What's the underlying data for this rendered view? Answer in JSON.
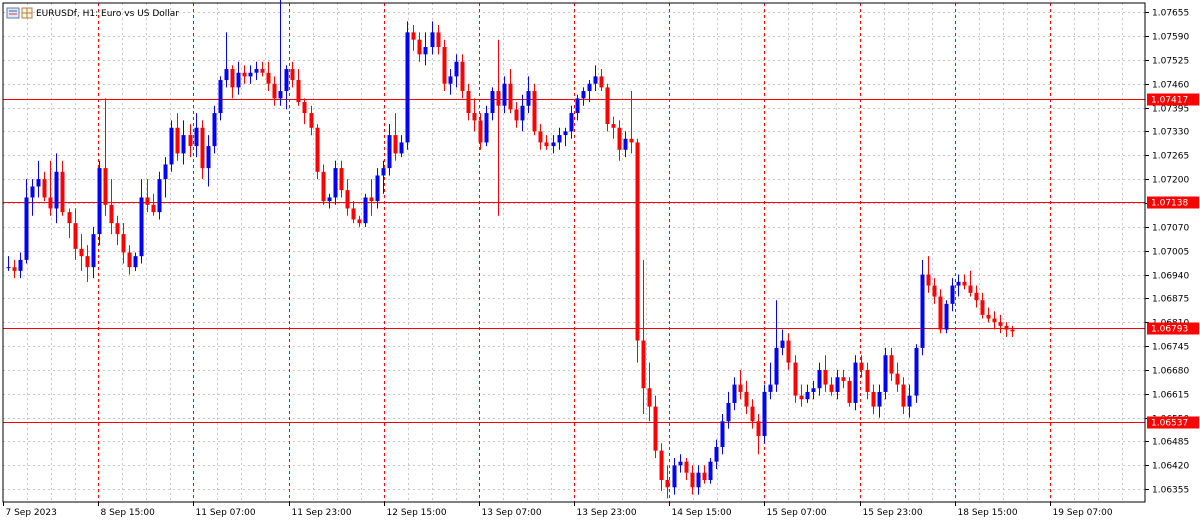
{
  "chart_data": {
    "type": "candlestick",
    "title": "EURUSDf, H1:  Euro vs US Dollar",
    "symbol": "EURUSDf",
    "timeframe": "H1",
    "description": "Euro vs US Dollar",
    "ylim": [
      1.0632,
      1.0768
    ],
    "y_ticks": [
      "1.07655",
      "1.07590",
      "1.07525",
      "1.07460",
      "1.07395",
      "1.07330",
      "1.07265",
      "1.07200",
      "1.07135",
      "1.07070",
      "1.07005",
      "1.06940",
      "1.06875",
      "1.06810",
      "1.06745",
      "1.06680",
      "1.06615",
      "1.06550",
      "1.06485",
      "1.06420",
      "1.06355"
    ],
    "x_ticks": [
      "7 Sep 2023",
      "8 Sep 15:00",
      "11 Sep 07:00",
      "11 Sep 23:00",
      "12 Sep 15:00",
      "13 Sep 07:00",
      "13 Sep 23:00",
      "14 Sep 15:00",
      "15 Sep 07:00",
      "15 Sep 23:00",
      "18 Sep 15:00",
      "19 Sep 07:00"
    ],
    "horizontal_levels": [
      {
        "value": 1.07417,
        "label": "1.07417"
      },
      {
        "value": 1.07138,
        "label": "1.07138"
      },
      {
        "value": 1.06793,
        "label": "1.06793"
      },
      {
        "value": 1.06537,
        "label": "1.06537"
      }
    ],
    "colors": {
      "bull": "#0000ff",
      "bear": "#ff0000",
      "level_line": "#ff0000",
      "grid": "#c8c8c8",
      "period_separator": "#ff0000",
      "background": "#ffffff"
    },
    "candles": [
      [
        1.0696,
        1.0699,
        1.0695,
        1.0696
      ],
      [
        1.0696,
        1.0698,
        1.0693,
        1.0695
      ],
      [
        1.0695,
        1.07,
        1.0693,
        1.0698
      ],
      [
        1.0698,
        1.072,
        1.0697,
        1.0715
      ],
      [
        1.0715,
        1.072,
        1.071,
        1.0718
      ],
      [
        1.0718,
        1.0725,
        1.0715,
        1.072
      ],
      [
        1.072,
        1.0722,
        1.0714,
        1.0715
      ],
      [
        1.0715,
        1.0725,
        1.071,
        1.0712
      ],
      [
        1.0712,
        1.0727,
        1.0708,
        1.0722
      ],
      [
        1.0722,
        1.0725,
        1.071,
        1.0711
      ],
      [
        1.0711,
        1.0712,
        1.0704,
        1.0708
      ],
      [
        1.0708,
        1.0712,
        1.0698,
        1.0701
      ],
      [
        1.0701,
        1.0705,
        1.0695,
        1.0699
      ],
      [
        1.0699,
        1.0702,
        1.0692,
        1.0696
      ],
      [
        1.0696,
        1.0707,
        1.0693,
        1.0705
      ],
      [
        1.0705,
        1.0725,
        1.0702,
        1.0723
      ],
      [
        1.0723,
        1.0742,
        1.071,
        1.0713
      ],
      [
        1.0713,
        1.072,
        1.0705,
        1.0708
      ],
      [
        1.0708,
        1.071,
        1.0702,
        1.0705
      ],
      [
        1.0705,
        1.0708,
        1.0697,
        1.07
      ],
      [
        1.07,
        1.0702,
        1.0694,
        1.0696
      ],
      [
        1.0696,
        1.07,
        1.0695,
        1.0699
      ],
      [
        1.0699,
        1.072,
        1.0697,
        1.0715
      ],
      [
        1.0715,
        1.072,
        1.0711,
        1.0713
      ],
      [
        1.0713,
        1.0716,
        1.071,
        1.0711
      ],
      [
        1.0711,
        1.0722,
        1.0709,
        1.072
      ],
      [
        1.072,
        1.0726,
        1.0715,
        1.0724
      ],
      [
        1.0724,
        1.0736,
        1.0722,
        1.0734
      ],
      [
        1.0734,
        1.0738,
        1.0725,
        1.0727
      ],
      [
        1.0727,
        1.0736,
        1.0724,
        1.0732
      ],
      [
        1.0732,
        1.0735,
        1.0726,
        1.0729
      ],
      [
        1.0729,
        1.0738,
        1.0726,
        1.0734
      ],
      [
        1.0734,
        1.0736,
        1.072,
        1.0723
      ],
      [
        1.0723,
        1.0732,
        1.0718,
        1.0729
      ],
      [
        1.0729,
        1.074,
        1.0727,
        1.0738
      ],
      [
        1.0738,
        1.0748,
        1.0736,
        1.0747
      ],
      [
        1.0747,
        1.076,
        1.0745,
        1.075
      ],
      [
        1.075,
        1.0751,
        1.0742,
        1.0745
      ],
      [
        1.0745,
        1.0752,
        1.0743,
        1.0749
      ],
      [
        1.0749,
        1.0751,
        1.0746,
        1.0748
      ],
      [
        1.0748,
        1.0751,
        1.0746,
        1.0749
      ],
      [
        1.0749,
        1.0752,
        1.0747,
        1.075
      ],
      [
        1.075,
        1.0752,
        1.0748,
        1.0749
      ],
      [
        1.0749,
        1.0752,
        1.0744,
        1.0746
      ],
      [
        1.0746,
        1.0748,
        1.074,
        1.0742
      ],
      [
        1.0742,
        1.0769,
        1.074,
        1.0744
      ],
      [
        1.0744,
        1.0751,
        1.0739,
        1.075
      ],
      [
        1.075,
        1.0752,
        1.0745,
        1.0747
      ],
      [
        1.0747,
        1.075,
        1.074,
        1.0741
      ],
      [
        1.0741,
        1.0742,
        1.0735,
        1.0738
      ],
      [
        1.0738,
        1.074,
        1.0732,
        1.0734
      ],
      [
        1.0734,
        1.0735,
        1.072,
        1.0722
      ],
      [
        1.0722,
        1.0724,
        1.0713,
        1.0714
      ],
      [
        1.0714,
        1.0716,
        1.0712,
        1.0715
      ],
      [
        1.0715,
        1.0725,
        1.0713,
        1.0723
      ],
      [
        1.0723,
        1.0725,
        1.0715,
        1.0717
      ],
      [
        1.0717,
        1.072,
        1.071,
        1.0712
      ],
      [
        1.0712,
        1.0714,
        1.0708,
        1.0709
      ],
      [
        1.0709,
        1.071,
        1.0707,
        1.0708
      ],
      [
        1.0708,
        1.0716,
        1.0707,
        1.0715
      ],
      [
        1.0715,
        1.072,
        1.071,
        1.0714
      ],
      [
        1.0714,
        1.0723,
        1.0712,
        1.0721
      ],
      [
        1.0721,
        1.0725,
        1.0716,
        1.0723
      ],
      [
        1.0723,
        1.0735,
        1.0721,
        1.0732
      ],
      [
        1.0732,
        1.0738,
        1.0725,
        1.0727
      ],
      [
        1.0727,
        1.0732,
        1.0726,
        1.073
      ],
      [
        1.073,
        1.0763,
        1.0728,
        1.076
      ],
      [
        1.076,
        1.0762,
        1.0755,
        1.0758
      ],
      [
        1.0758,
        1.076,
        1.0752,
        1.0754
      ],
      [
        1.0754,
        1.076,
        1.0751,
        1.0756
      ],
      [
        1.0756,
        1.0763,
        1.0754,
        1.076
      ],
      [
        1.076,
        1.0762,
        1.0754,
        1.0756
      ],
      [
        1.0756,
        1.0758,
        1.0744,
        1.0746
      ],
      [
        1.0746,
        1.075,
        1.0743,
        1.0748
      ],
      [
        1.0748,
        1.0754,
        1.0745,
        1.0752
      ],
      [
        1.0752,
        1.0754,
        1.0742,
        1.0744
      ],
      [
        1.0744,
        1.0746,
        1.0736,
        1.0738
      ],
      [
        1.0738,
        1.0742,
        1.0733,
        1.0736
      ],
      [
        1.0736,
        1.0738,
        1.0728,
        1.073
      ],
      [
        1.073,
        1.074,
        1.0729,
        1.0738
      ],
      [
        1.0738,
        1.0745,
        1.0736,
        1.0744
      ],
      [
        1.0744,
        1.0758,
        1.071,
        1.074
      ],
      [
        1.074,
        1.0748,
        1.0738,
        1.0746
      ],
      [
        1.0746,
        1.075,
        1.0738,
        1.0739
      ],
      [
        1.0739,
        1.0741,
        1.0734,
        1.0736
      ],
      [
        1.0736,
        1.0743,
        1.0733,
        1.074
      ],
      [
        1.074,
        1.0748,
        1.0738,
        1.0744
      ],
      [
        1.0744,
        1.0746,
        1.0732,
        1.0733
      ],
      [
        1.0733,
        1.0735,
        1.0728,
        1.073
      ],
      [
        1.073,
        1.0732,
        1.0728,
        1.0729
      ],
      [
        1.0729,
        1.0732,
        1.0727,
        1.073
      ],
      [
        1.073,
        1.0734,
        1.0728,
        1.0732
      ],
      [
        1.0732,
        1.0734,
        1.0729,
        1.0733
      ],
      [
        1.0733,
        1.074,
        1.0731,
        1.0738
      ],
      [
        1.0738,
        1.0743,
        1.0736,
        1.0742
      ],
      [
        1.0742,
        1.0745,
        1.074,
        1.0744
      ],
      [
        1.0744,
        1.0747,
        1.0741,
        1.0746
      ],
      [
        1.0746,
        1.0751,
        1.0744,
        1.0748
      ],
      [
        1.0748,
        1.075,
        1.0744,
        1.0745
      ],
      [
        1.0745,
        1.0746,
        1.0733,
        1.0735
      ],
      [
        1.0735,
        1.0737,
        1.0731,
        1.0734
      ],
      [
        1.0734,
        1.0736,
        1.0725,
        1.0728
      ],
      [
        1.0728,
        1.0733,
        1.0726,
        1.0731
      ],
      [
        1.0731,
        1.0744,
        1.0727,
        1.073
      ],
      [
        1.073,
        1.0731,
        1.067,
        1.0676
      ],
      [
        1.0676,
        1.0698,
        1.0656,
        1.0663
      ],
      [
        1.0663,
        1.067,
        1.0654,
        1.0658
      ],
      [
        1.0658,
        1.0661,
        1.0644,
        1.0646
      ],
      [
        1.0646,
        1.0648,
        1.0635,
        1.0638
      ],
      [
        1.0638,
        1.0642,
        1.0633,
        1.0636
      ],
      [
        1.0636,
        1.0644,
        1.0634,
        1.0642
      ],
      [
        1.0642,
        1.0645,
        1.064,
        1.0643
      ],
      [
        1.0643,
        1.0644,
        1.0638,
        1.064
      ],
      [
        1.064,
        1.0642,
        1.0634,
        1.0636
      ],
      [
        1.0636,
        1.0642,
        1.0634,
        1.064
      ],
      [
        1.064,
        1.0642,
        1.0637,
        1.0638
      ],
      [
        1.0638,
        1.0644,
        1.0637,
        1.0643
      ],
      [
        1.0643,
        1.0649,
        1.0641,
        1.0647
      ],
      [
        1.0647,
        1.0656,
        1.0645,
        1.0654
      ],
      [
        1.0654,
        1.0662,
        1.0652,
        1.0659
      ],
      [
        1.0659,
        1.0666,
        1.0657,
        1.0664
      ],
      [
        1.0664,
        1.0668,
        1.066,
        1.0662
      ],
      [
        1.0662,
        1.0665,
        1.0656,
        1.0658
      ],
      [
        1.0658,
        1.066,
        1.0652,
        1.0654
      ],
      [
        1.0654,
        1.0656,
        1.0645,
        1.065
      ],
      [
        1.065,
        1.0664,
        1.0648,
        1.0662
      ],
      [
        1.0662,
        1.067,
        1.066,
        1.0664
      ],
      [
        1.0664,
        1.0687,
        1.0662,
        1.0674
      ],
      [
        1.0674,
        1.0679,
        1.0672,
        1.0676
      ],
      [
        1.0676,
        1.0678,
        1.0668,
        1.067
      ],
      [
        1.067,
        1.0672,
        1.0659,
        1.0661
      ],
      [
        1.0661,
        1.0664,
        1.0658,
        1.066
      ],
      [
        1.066,
        1.0664,
        1.0659,
        1.0662
      ],
      [
        1.0662,
        1.0665,
        1.066,
        1.0663
      ],
      [
        1.0663,
        1.067,
        1.0661,
        1.0668
      ],
      [
        1.0668,
        1.0672,
        1.0662,
        1.0664
      ],
      [
        1.0664,
        1.0666,
        1.0661,
        1.0662
      ],
      [
        1.0662,
        1.0668,
        1.066,
        1.0666
      ],
      [
        1.0666,
        1.0668,
        1.0663,
        1.0665
      ],
      [
        1.0665,
        1.0666,
        1.0658,
        1.0659
      ],
      [
        1.0659,
        1.0672,
        1.0657,
        1.067
      ],
      [
        1.067,
        1.0672,
        1.0666,
        1.0668
      ],
      [
        1.0668,
        1.067,
        1.066,
        1.0662
      ],
      [
        1.0662,
        1.0664,
        1.0656,
        1.0658
      ],
      [
        1.0658,
        1.0664,
        1.0655,
        1.0662
      ],
      [
        1.0662,
        1.0674,
        1.066,
        1.0672
      ],
      [
        1.0672,
        1.0674,
        1.0665,
        1.0667
      ],
      [
        1.0667,
        1.067,
        1.0662,
        1.0664
      ],
      [
        1.0664,
        1.0666,
        1.0656,
        1.0658
      ],
      [
        1.0658,
        1.0664,
        1.0655,
        1.0661
      ],
      [
        1.0661,
        1.0675,
        1.0659,
        1.0674
      ],
      [
        1.0674,
        1.0698,
        1.0672,
        1.0694
      ],
      [
        1.0694,
        1.0699,
        1.0689,
        1.0691
      ],
      [
        1.0691,
        1.0693,
        1.0686,
        1.0688
      ],
      [
        1.0688,
        1.069,
        1.0678,
        1.0679
      ],
      [
        1.0679,
        1.0687,
        1.0678,
        1.0686
      ],
      [
        1.0686,
        1.0693,
        1.0684,
        1.0691
      ],
      [
        1.0691,
        1.0694,
        1.0688,
        1.0692
      ],
      [
        1.0692,
        1.0694,
        1.069,
        1.0691
      ],
      [
        1.0691,
        1.0695,
        1.0688,
        1.0689
      ],
      [
        1.0689,
        1.0691,
        1.0685,
        1.0687
      ],
      [
        1.0687,
        1.0689,
        1.0682,
        1.0683
      ],
      [
        1.0683,
        1.0685,
        1.0681,
        1.0682
      ],
      [
        1.0682,
        1.0684,
        1.0679,
        1.0681
      ],
      [
        1.0681,
        1.0683,
        1.0678,
        1.068
      ],
      [
        1.068,
        1.0681,
        1.0677,
        1.0679
      ],
      [
        1.0679,
        1.068,
        1.0677,
        1.06785
      ]
    ]
  }
}
